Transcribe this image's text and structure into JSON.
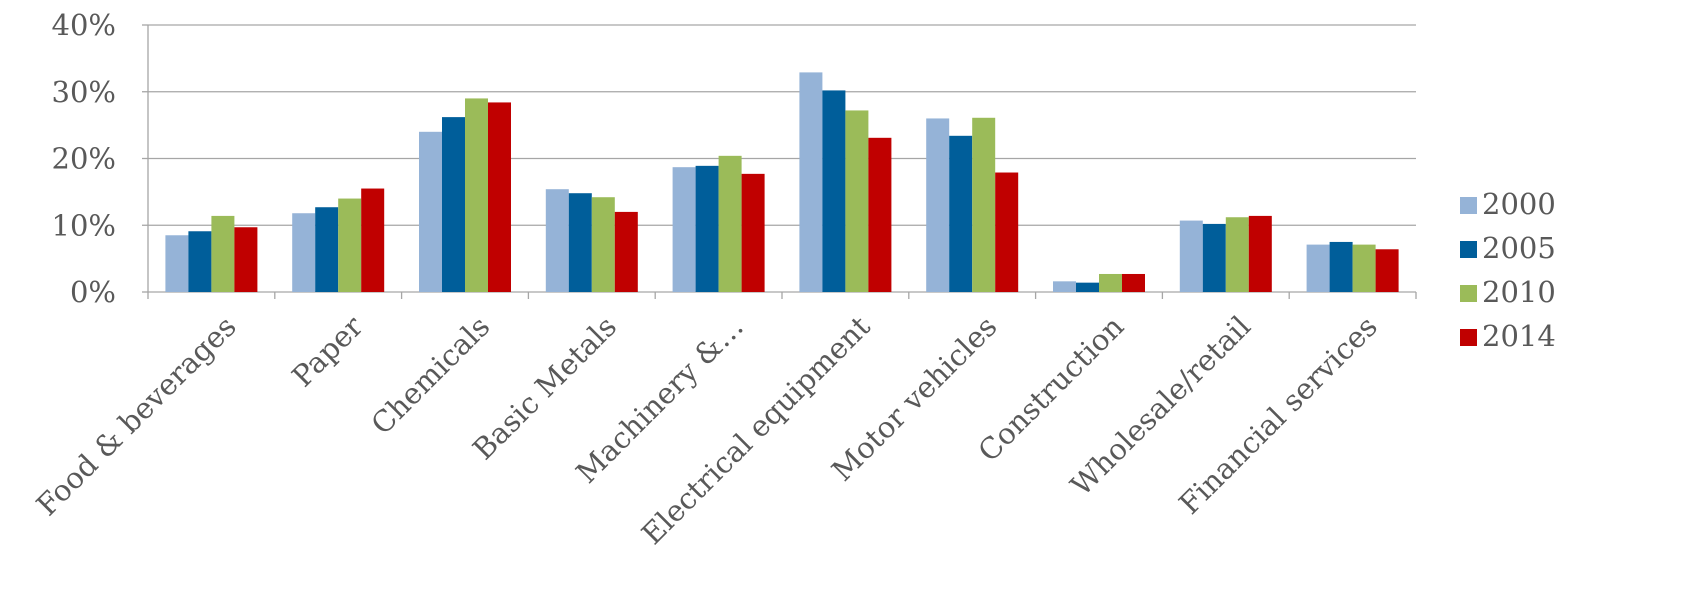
{
  "chart_data": {
    "type": "bar",
    "categories": [
      "Food & beverages",
      "Paper",
      "Chemicals",
      "Basic Metals",
      "Machinery &…",
      "Electrical equipment",
      "Motor vehicles",
      "Construction",
      "Wholesale/retail",
      "Financial services"
    ],
    "series": [
      {
        "name": "2000",
        "color": "#95B3D7",
        "values": [
          8.5,
          11.8,
          24.0,
          15.4,
          18.7,
          32.9,
          26.0,
          1.6,
          10.7,
          7.1
        ]
      },
      {
        "name": "2005",
        "color": "#005E9A",
        "values": [
          9.1,
          12.7,
          26.2,
          14.8,
          18.9,
          30.2,
          23.4,
          1.4,
          10.2,
          7.5
        ]
      },
      {
        "name": "2010",
        "color": "#9BBB59",
        "values": [
          11.4,
          14.0,
          29.0,
          14.2,
          20.4,
          27.2,
          26.1,
          2.7,
          11.2,
          7.1
        ]
      },
      {
        "name": "2014",
        "color": "#C00000",
        "values": [
          9.7,
          15.5,
          28.4,
          12.0,
          17.7,
          23.1,
          17.9,
          2.7,
          11.4,
          6.4
        ]
      }
    ],
    "yticks": [
      "0%",
      "10%",
      "20%",
      "30%",
      "40%"
    ],
    "ylim": [
      0,
      40
    ],
    "grid": true,
    "legend": "right",
    "gridColor": "#A6A6A6",
    "textColor": "#595959"
  }
}
